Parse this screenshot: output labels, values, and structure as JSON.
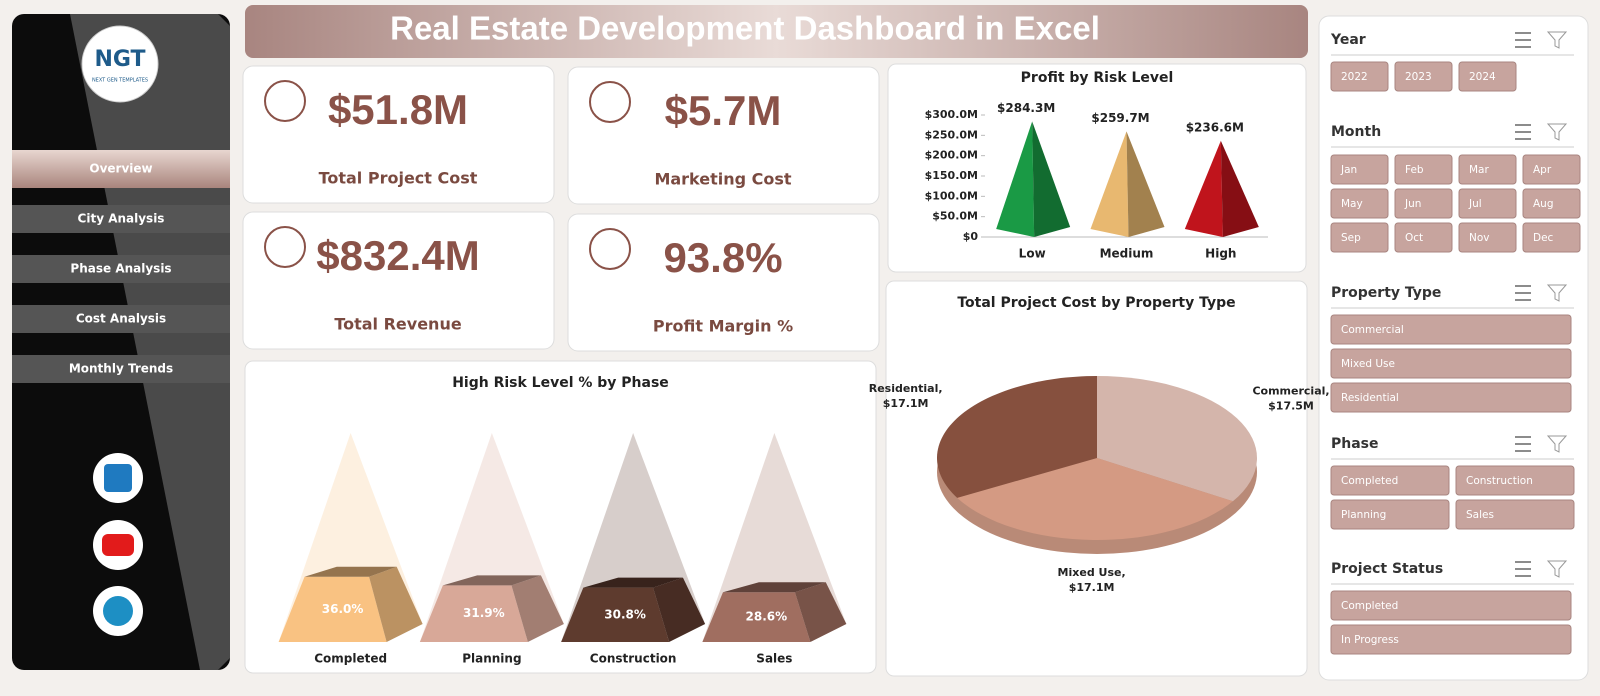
{
  "header": {
    "title": "Real Estate Development Dashboard in Excel"
  },
  "logo": {
    "text": "NGT",
    "subtext": "NEXT GEN TEMPLATES"
  },
  "nav": [
    "Overview",
    "City Analysis",
    "Phase Analysis",
    "Cost Analysis",
    "Monthly Trends"
  ],
  "kpis": [
    {
      "value": "$51.8M",
      "label": "Total Project Cost"
    },
    {
      "value": "$5.7M",
      "label": "Marketing Cost"
    },
    {
      "value": "$832.4M",
      "label": "Total Revenue"
    },
    {
      "value": "93.8%",
      "label": "Profit Margin %"
    }
  ],
  "chart_data": [
    {
      "type": "pyramid",
      "title": "Profit by Risk Level",
      "categories": [
        "Low",
        "Medium",
        "High"
      ],
      "values": [
        284.3,
        259.7,
        236.6
      ],
      "value_labels": [
        "$284.3M",
        "$259.7M",
        "$236.6M"
      ],
      "colors": [
        "#1a9a45",
        "#e8b870",
        "#c0141c"
      ],
      "ylim": [
        0,
        300
      ],
      "yticks": [
        {
          "value": 0,
          "label": "$0"
        },
        {
          "value": 50,
          "label": "$50.0M"
        },
        {
          "value": 100,
          "label": "$100.0M"
        },
        {
          "value": 150,
          "label": "$150.0M"
        },
        {
          "value": 200,
          "label": "$200.0M"
        },
        {
          "value": 250,
          "label": "$250.0M"
        },
        {
          "value": 300,
          "label": "$300.0M"
        }
      ]
    },
    {
      "type": "stacked-pyramid",
      "title": "High Risk Level % by Phase",
      "categories": [
        "Completed",
        "Planning",
        "Construction",
        "Sales"
      ],
      "values": [
        36.0,
        31.9,
        30.8,
        28.6
      ],
      "value_labels": [
        "36.0%",
        "31.9%",
        "30.8%",
        "28.6%"
      ],
      "colors": [
        "#f9c282",
        "#d8a898",
        "#5e3b2e",
        "#a06e60"
      ],
      "ylim": [
        0,
        100
      ]
    },
    {
      "type": "pie",
      "title": "Total Project Cost by Property Type",
      "categories": [
        "Commercial,",
        "Mixed Use,",
        "Residential,"
      ],
      "values": [
        17.5,
        17.1,
        17.1
      ],
      "value_labels": [
        "$17.5M",
        "$17.1M",
        "$17.1M"
      ],
      "colors": [
        "#d4b5ab",
        "#d49a83",
        "#86503e"
      ]
    }
  ],
  "slicers": [
    {
      "title": "Year",
      "items": [
        "2022",
        "2023",
        "2024"
      ]
    },
    {
      "title": "Month",
      "items": [
        "Jan",
        "Feb",
        "Mar",
        "Apr",
        "May",
        "Jun",
        "Jul",
        "Aug",
        "Sep",
        "Oct",
        "Nov",
        "Dec"
      ]
    },
    {
      "title": "Property Type",
      "items": [
        "Commercial",
        "Mixed Use",
        "Residential"
      ]
    },
    {
      "title": "Phase",
      "items": [
        "Completed",
        "Construction",
        "Planning",
        "Sales"
      ]
    },
    {
      "title": "Project Status",
      "items": [
        "Completed",
        "In Progress"
      ]
    }
  ]
}
